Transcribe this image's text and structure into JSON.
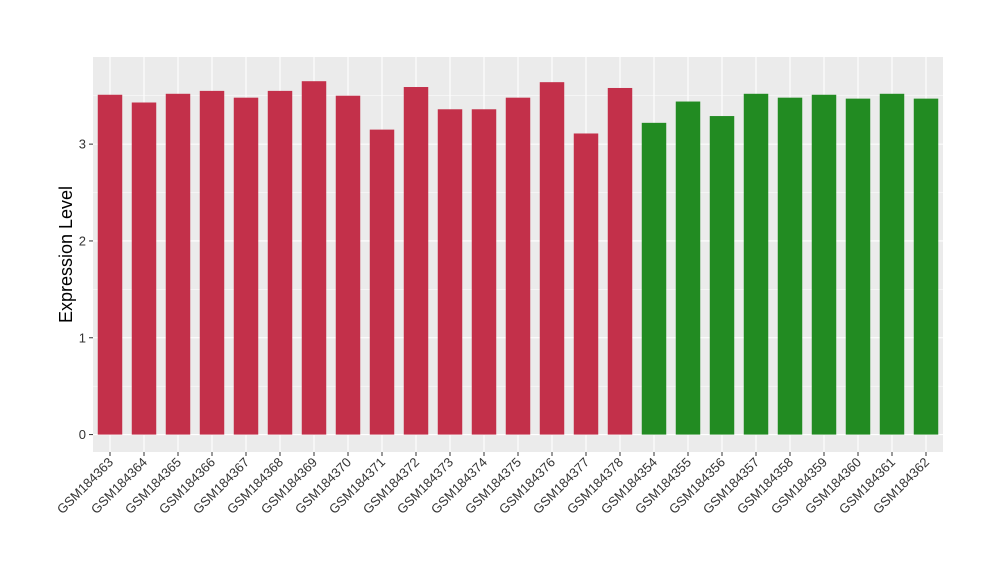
{
  "chart_data": {
    "type": "bar",
    "title": "",
    "xlabel": "",
    "ylabel": "Expression Level",
    "ylim": [
      -0.18,
      3.9
    ],
    "yticks": [
      0,
      1,
      2,
      3
    ],
    "grid": true,
    "legend": "none",
    "colors": {
      "group_a": "#C3304A",
      "group_b": "#228B22",
      "panel": "#EBEBEB",
      "gridline": "#FFFFFF"
    },
    "bars": [
      {
        "category": "GSM184363",
        "value": 3.51,
        "group": "group_a"
      },
      {
        "category": "GSM184364",
        "value": 3.43,
        "group": "group_a"
      },
      {
        "category": "GSM184365",
        "value": 3.52,
        "group": "group_a"
      },
      {
        "category": "GSM184366",
        "value": 3.55,
        "group": "group_a"
      },
      {
        "category": "GSM184367",
        "value": 3.48,
        "group": "group_a"
      },
      {
        "category": "GSM184368",
        "value": 3.55,
        "group": "group_a"
      },
      {
        "category": "GSM184369",
        "value": 3.65,
        "group": "group_a"
      },
      {
        "category": "GSM184370",
        "value": 3.5,
        "group": "group_a"
      },
      {
        "category": "GSM184371",
        "value": 3.15,
        "group": "group_a"
      },
      {
        "category": "GSM184372",
        "value": 3.59,
        "group": "group_a"
      },
      {
        "category": "GSM184373",
        "value": 3.36,
        "group": "group_a"
      },
      {
        "category": "GSM184374",
        "value": 3.36,
        "group": "group_a"
      },
      {
        "category": "GSM184375",
        "value": 3.48,
        "group": "group_a"
      },
      {
        "category": "GSM184376",
        "value": 3.64,
        "group": "group_a"
      },
      {
        "category": "GSM184377",
        "value": 3.11,
        "group": "group_a"
      },
      {
        "category": "GSM184378",
        "value": 3.58,
        "group": "group_a"
      },
      {
        "category": "GSM184354",
        "value": 3.22,
        "group": "group_b"
      },
      {
        "category": "GSM184355",
        "value": 3.44,
        "group": "group_b"
      },
      {
        "category": "GSM184356",
        "value": 3.29,
        "group": "group_b"
      },
      {
        "category": "GSM184357",
        "value": 3.52,
        "group": "group_b"
      },
      {
        "category": "GSM184358",
        "value": 3.48,
        "group": "group_b"
      },
      {
        "category": "GSM184359",
        "value": 3.51,
        "group": "group_b"
      },
      {
        "category": "GSM184360",
        "value": 3.47,
        "group": "group_b"
      },
      {
        "category": "GSM184361",
        "value": 3.52,
        "group": "group_b"
      },
      {
        "category": "GSM184362",
        "value": 3.47,
        "group": "group_b"
      }
    ]
  }
}
